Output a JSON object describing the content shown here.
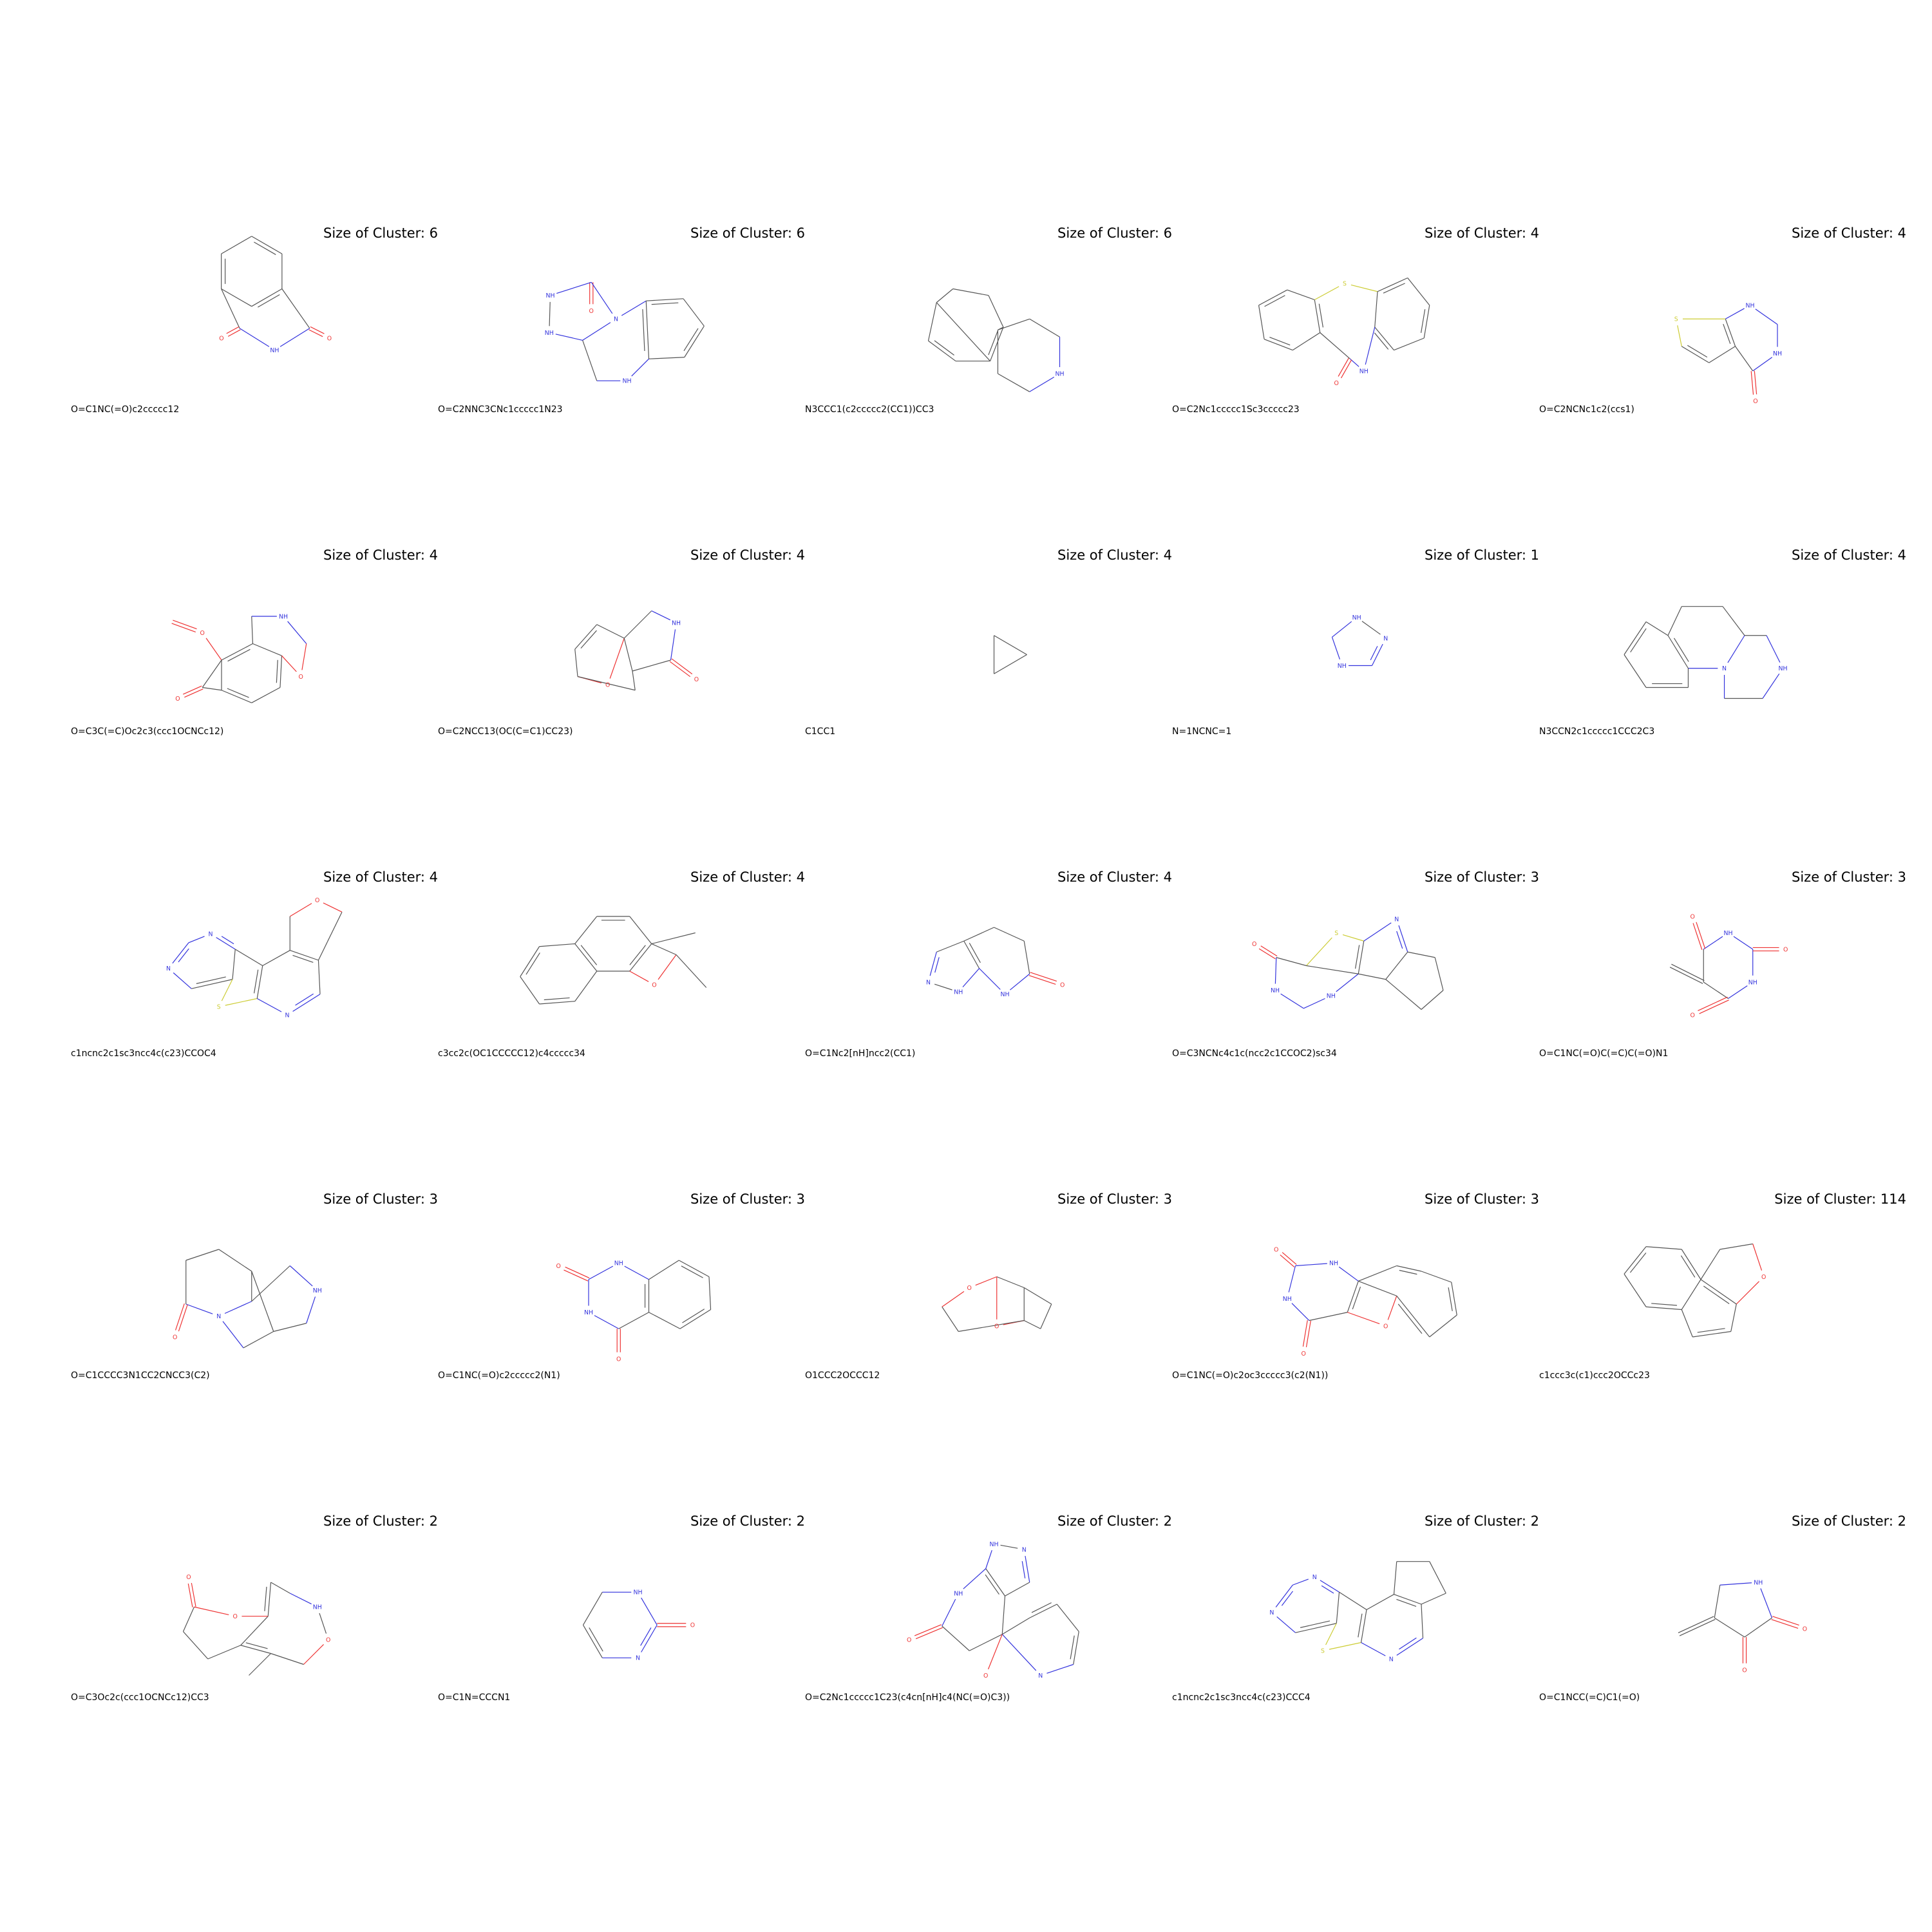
{
  "colors": {
    "bond": "#555555",
    "N": "#3333dd",
    "O": "#ee3333",
    "S": "#cccc33"
  },
  "cells": [
    {
      "title": "Size of Cluster: 6",
      "smiles": "O=C1NC(=O)c2ccccc12"
    },
    {
      "title": "Size of Cluster: 6",
      "smiles": "O=C2NNC3CNc1ccccc1N23"
    },
    {
      "title": "Size of Cluster: 6",
      "smiles": "N3CCC1(c2ccccc2(CC1))CC3"
    },
    {
      "title": "Size of Cluster: 4",
      "smiles": "O=C2Nc1ccccc1Sc3ccccc23"
    },
    {
      "title": "Size of Cluster: 4",
      "smiles": "O=C2NCNc1c2(ccs1)"
    },
    {
      "title": "Size of Cluster: 4",
      "smiles": "O=C3C(=C)Oc2c3(ccc1OCNCc12)"
    },
    {
      "title": "Size of Cluster: 4",
      "smiles": "O=C2NCC13(OC(C=C1)CC23)"
    },
    {
      "title": "Size of Cluster: 4",
      "smiles": "C1CC1"
    },
    {
      "title": "Size of Cluster: 1",
      "smiles": "N=1NCNC=1"
    },
    {
      "title": "Size of Cluster: 4",
      "smiles": "N3CCN2c1ccccc1CCC2C3"
    },
    {
      "title": "Size of Cluster: 4",
      "smiles": "c1ncnc2c1sc3ncc4c(c23)CCOC4"
    },
    {
      "title": "Size of Cluster: 4",
      "smiles": "c3cc2c(OC1CCCCC12)c4ccccc34"
    },
    {
      "title": "Size of Cluster: 4",
      "smiles": "O=C1Nc2[nH]ncc2(CC1)"
    },
    {
      "title": "Size of Cluster: 3",
      "smiles": "O=C3NCNc4c1c(ncc2c1CCOC2)sc34"
    },
    {
      "title": "Size of Cluster: 3",
      "smiles": "O=C1NC(=O)C(=C)C(=O)N1"
    },
    {
      "title": "Size of Cluster: 3",
      "smiles": "O=C1CCCC3N1CC2CNCC3(C2)"
    },
    {
      "title": "Size of Cluster: 3",
      "smiles": "O=C1NC(=O)c2ccccc2(N1)"
    },
    {
      "title": "Size of Cluster: 3",
      "smiles": "O1CCC2OCCC12"
    },
    {
      "title": "Size of Cluster: 3",
      "smiles": "O=C1NC(=O)c2oc3ccccc3(c2(N1))"
    },
    {
      "title": "Size of Cluster: 114",
      "smiles": "c1ccc3c(c1)ccc2OCCc23"
    },
    {
      "title": "Size of Cluster: 2",
      "smiles": "O=C3Oc2c(ccc1OCNCc12)CC3"
    },
    {
      "title": "Size of Cluster: 2",
      "smiles": "O=C1N=CCCN1"
    },
    {
      "title": "Size of Cluster: 2",
      "smiles": "O=C2Nc1ccccc1C23(c4cn[nH]c4(NC(=O)C3))"
    },
    {
      "title": "Size of Cluster: 2",
      "smiles": "c1ncnc2c1sc3ncc4c(c23)CCC4"
    },
    {
      "title": "Size of Cluster: 2",
      "smiles": "O=C1NCC(=C)C1(=O)"
    }
  ]
}
